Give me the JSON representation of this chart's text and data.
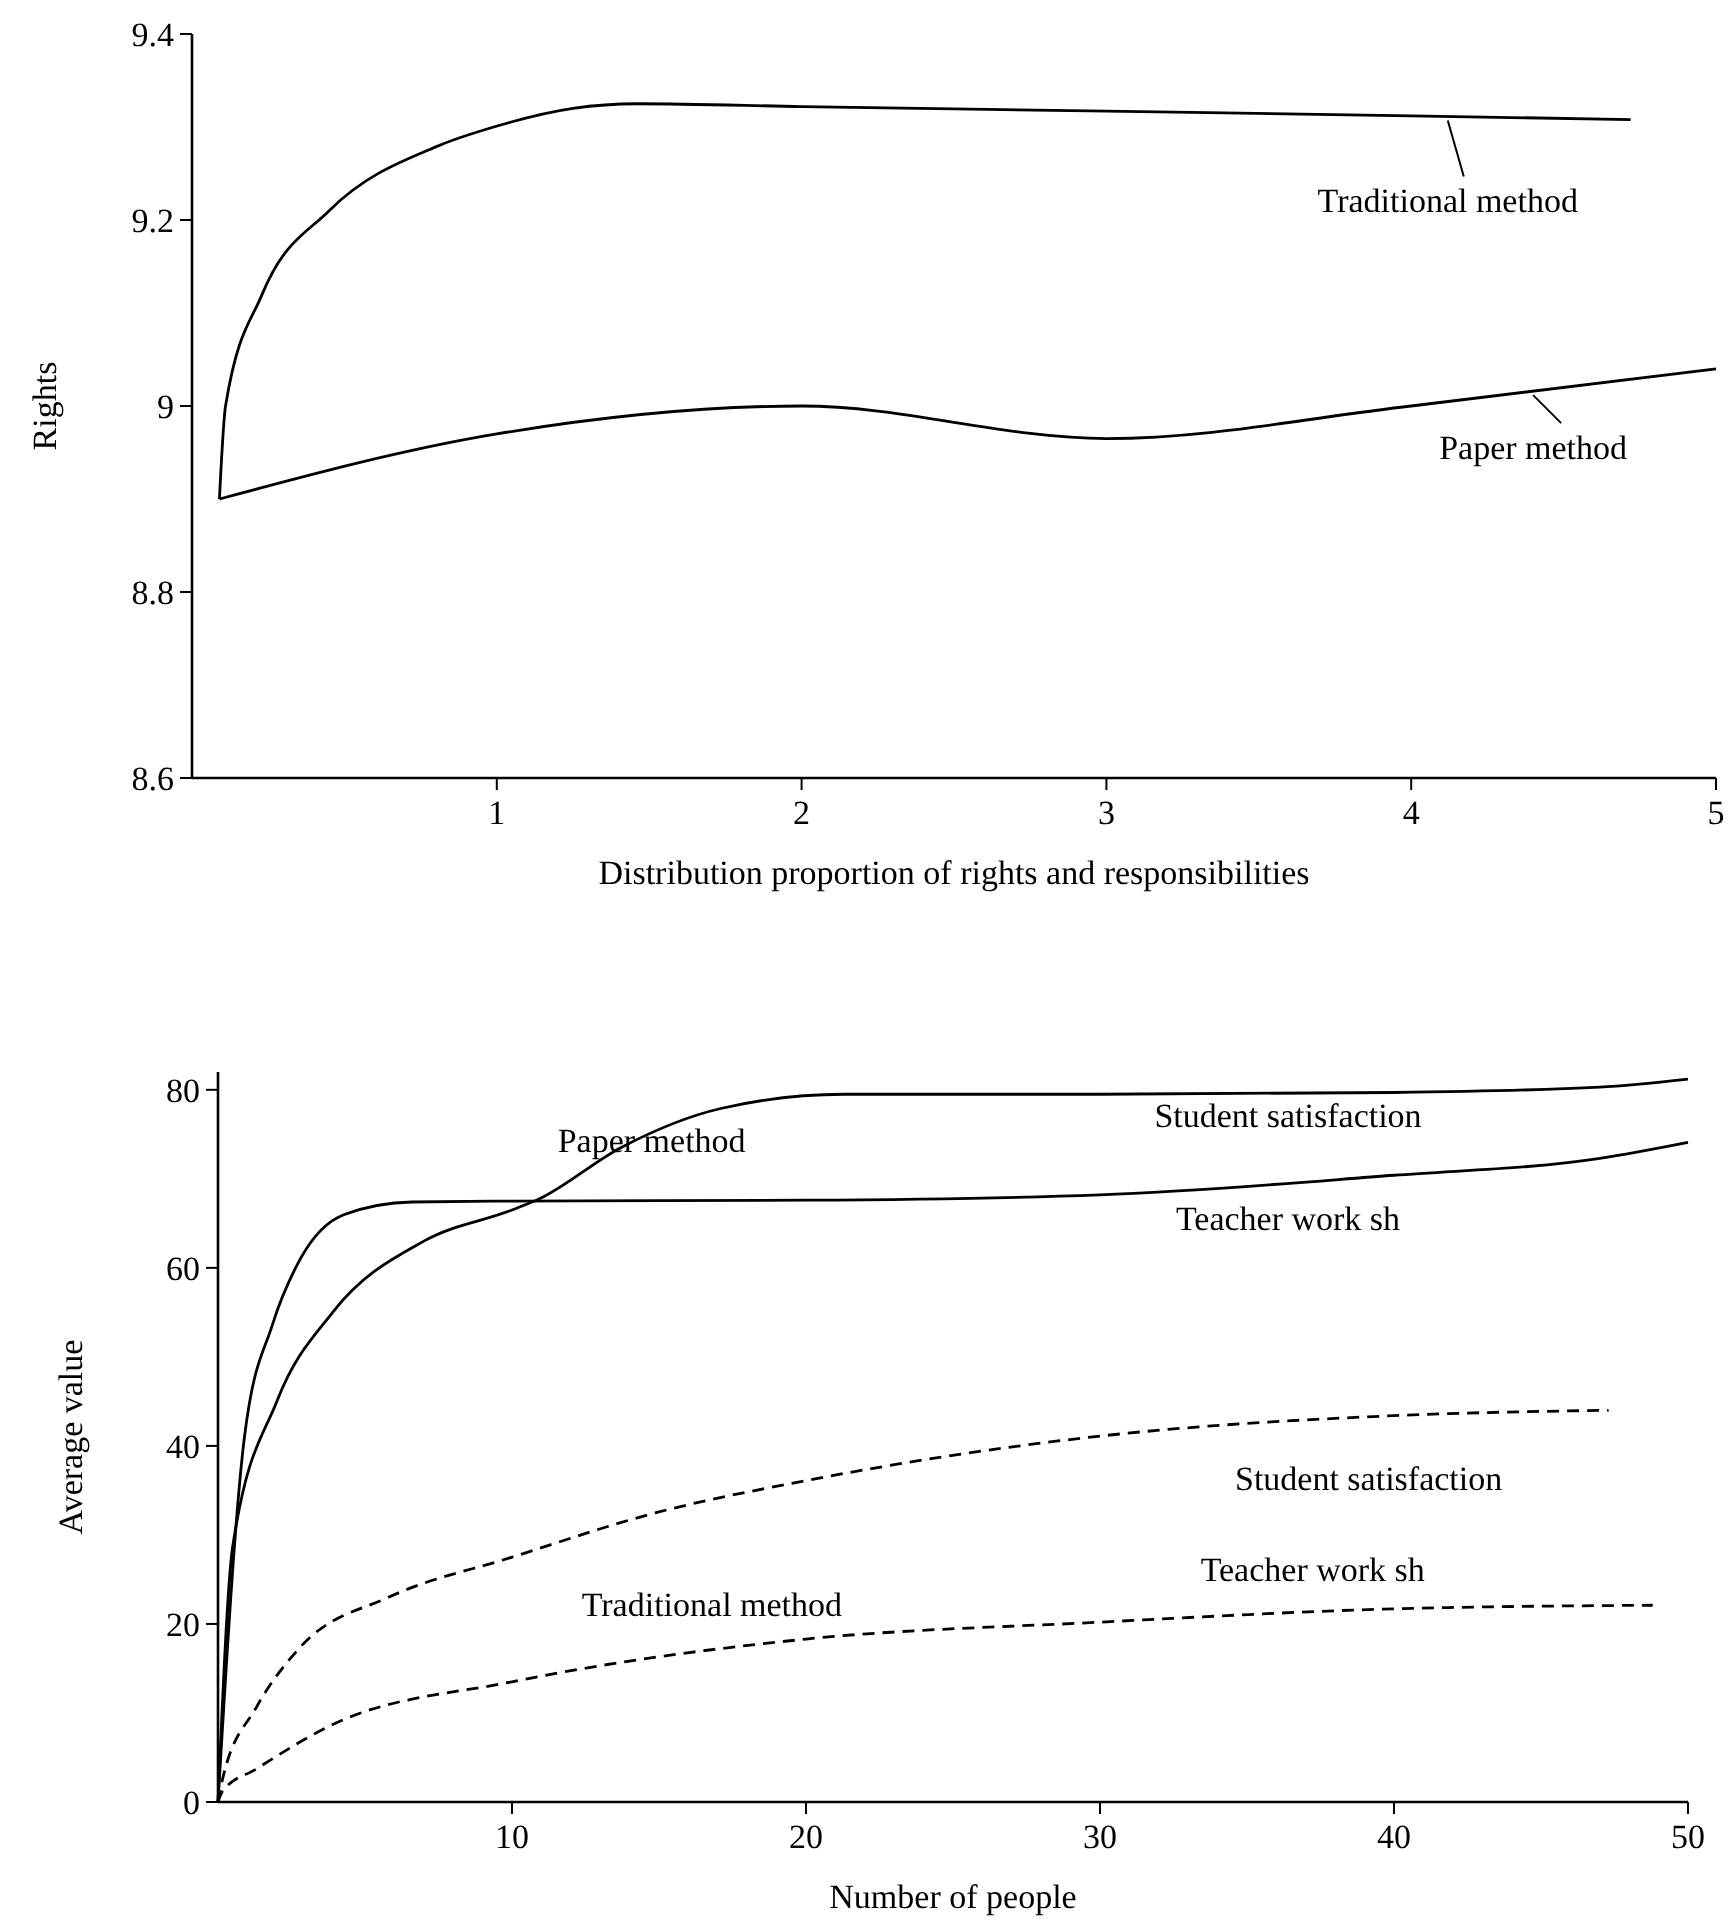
{
  "chart_data": [
    {
      "type": "line",
      "xlabel": "Distribution proportion of rights and responsibilities",
      "ylabel": "Rights",
      "xlim": [
        0,
        5
      ],
      "ylim": [
        8.6,
        9.4
      ],
      "xticks": [
        1,
        2,
        3,
        4,
        5
      ],
      "yticks": [
        8.6,
        8.8,
        9,
        9.2,
        9.4
      ],
      "legend": "right",
      "series": [
        {
          "name": "Traditional method",
          "color": "#000000",
          "x": [
            0.09,
            0.11,
            0.23,
            0.45,
            0.81,
            0.99,
            1.25,
            1.46,
            2,
            3,
            4,
            4.72
          ],
          "values": [
            8.9,
            9.0,
            9.12,
            9.21,
            9.28,
            9.3,
            9.32,
            9.325,
            9.322,
            9.317,
            9.312,
            9.308
          ]
        },
        {
          "name": "Paper method",
          "color": "#000000",
          "x": [
            0.09,
            1,
            2,
            3,
            4,
            5
          ],
          "values": [
            8.9,
            8.97,
            9.0,
            8.965,
            9.0,
            9.04
          ]
        }
      ]
    },
    {
      "type": "line",
      "xlabel": "Number of people",
      "ylabel": "Average value",
      "xlim": [
        0,
        50
      ],
      "ylim": [
        0,
        82
      ],
      "xticks": [
        10,
        20,
        30,
        40,
        50
      ],
      "yticks": [
        0,
        20,
        40,
        60,
        80
      ],
      "annotations": [
        "Paper method",
        "Traditional method"
      ],
      "series": [
        {
          "name": "Student satisfaction",
          "color": "#000000",
          "line_style": "solid",
          "x": [
            0,
            0.5,
            2,
            3.9,
            7,
            10,
            10.9,
            13.7,
            17.1,
            21.3,
            30,
            40,
            47,
            50
          ],
          "values": [
            0,
            28.7,
            45,
            55,
            63,
            66.5,
            67.7,
            73.5,
            77.9,
            79.5,
            79.5,
            79.7,
            80.3,
            81.2
          ]
        },
        {
          "name": "Teacher work sh",
          "color": "#000000",
          "line_style": "solid",
          "x": [
            0,
            0.9,
            1.85,
            2.8,
            4.3,
            6.6,
            10,
            20,
            30,
            40,
            47,
            50
          ],
          "values": [
            0,
            41,
            53.6,
            61,
            66,
            67.4,
            67.5,
            67.6,
            68.2,
            70.4,
            72.3,
            74.1
          ]
        },
        {
          "name": "Student satisfaction",
          "color": "#000000",
          "line_style": "dashed",
          "x": [
            0,
            0.15,
            1.3,
            2.8,
            5.8,
            10,
            14.9,
            20,
            30,
            40,
            47.3
          ],
          "values": [
            0,
            2.5,
            10.6,
            17.4,
            23,
            27.5,
            32.5,
            36.1,
            41.1,
            43.4,
            44
          ]
        },
        {
          "name": "Teacher work sh",
          "color": "#000000",
          "line_style": "dashed",
          "x": [
            0,
            0.15,
            1.3,
            3.9,
            10,
            20,
            30,
            40,
            48.8
          ],
          "values": [
            0,
            1.2,
            3.7,
            8.7,
            13.5,
            18.3,
            20.2,
            21.7,
            22.1
          ]
        }
      ]
    }
  ]
}
